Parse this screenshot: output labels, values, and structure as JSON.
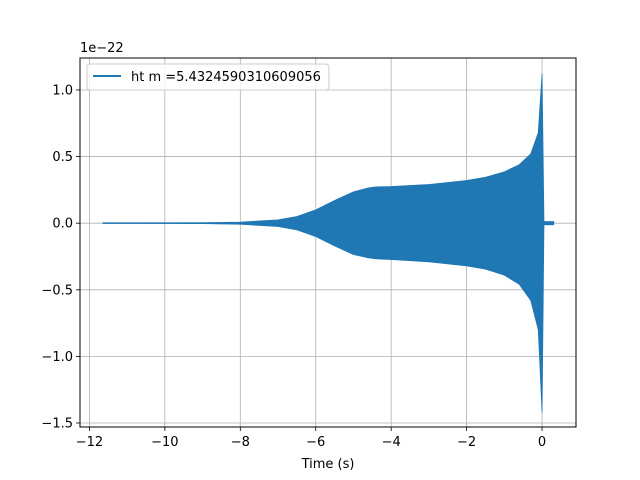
{
  "chart_data": {
    "type": "line",
    "xlabel": "Time (s)",
    "ylabel": "",
    "y_offset_text": "1e−22",
    "xlim": [
      -12.25,
      0.9
    ],
    "ylim": [
      -1.53,
      1.24
    ],
    "x_ticks": [
      -12,
      -10,
      -8,
      -6,
      -4,
      -2,
      0
    ],
    "x_tick_labels": [
      "−12",
      "−10",
      "−8",
      "−6",
      "−4",
      "−2",
      "0"
    ],
    "y_ticks": [
      -1.5,
      -1.0,
      -0.5,
      0.0,
      0.5,
      1.0
    ],
    "y_tick_labels": [
      "−1.5",
      "−1.0",
      "−0.5",
      "0.0",
      "0.5",
      "1.0"
    ],
    "grid": true,
    "legend_position": "top-left",
    "series": [
      {
        "name": "ht m =5.4324590310609056",
        "color": "#1f77b4",
        "x_range": [
          -11.65,
          0.32
        ],
        "envelope": {
          "x": [
            -11.65,
            -9.0,
            -8.0,
            -7.0,
            -6.5,
            -6.0,
            -5.5,
            -5.0,
            -4.6,
            -4.4,
            -4.0,
            -3.0,
            -2.0,
            -1.5,
            -1.0,
            -0.6,
            -0.3,
            -0.1,
            0.0,
            0.05
          ],
          "upper": [
            0.0,
            0.003,
            0.008,
            0.025,
            0.05,
            0.1,
            0.17,
            0.235,
            0.265,
            0.272,
            0.275,
            0.29,
            0.32,
            0.345,
            0.385,
            0.44,
            0.52,
            0.68,
            1.12,
            0.02
          ],
          "lower": [
            0.0,
            -0.003,
            -0.008,
            -0.025,
            -0.05,
            -0.1,
            -0.17,
            -0.235,
            -0.26,
            -0.268,
            -0.272,
            -0.29,
            -0.32,
            -0.345,
            -0.39,
            -0.46,
            -0.58,
            -0.8,
            -1.42,
            -0.02
          ]
        },
        "ringdown": {
          "x": [
            0.05,
            0.32
          ],
          "amplitude": 0.015
        }
      }
    ]
  }
}
